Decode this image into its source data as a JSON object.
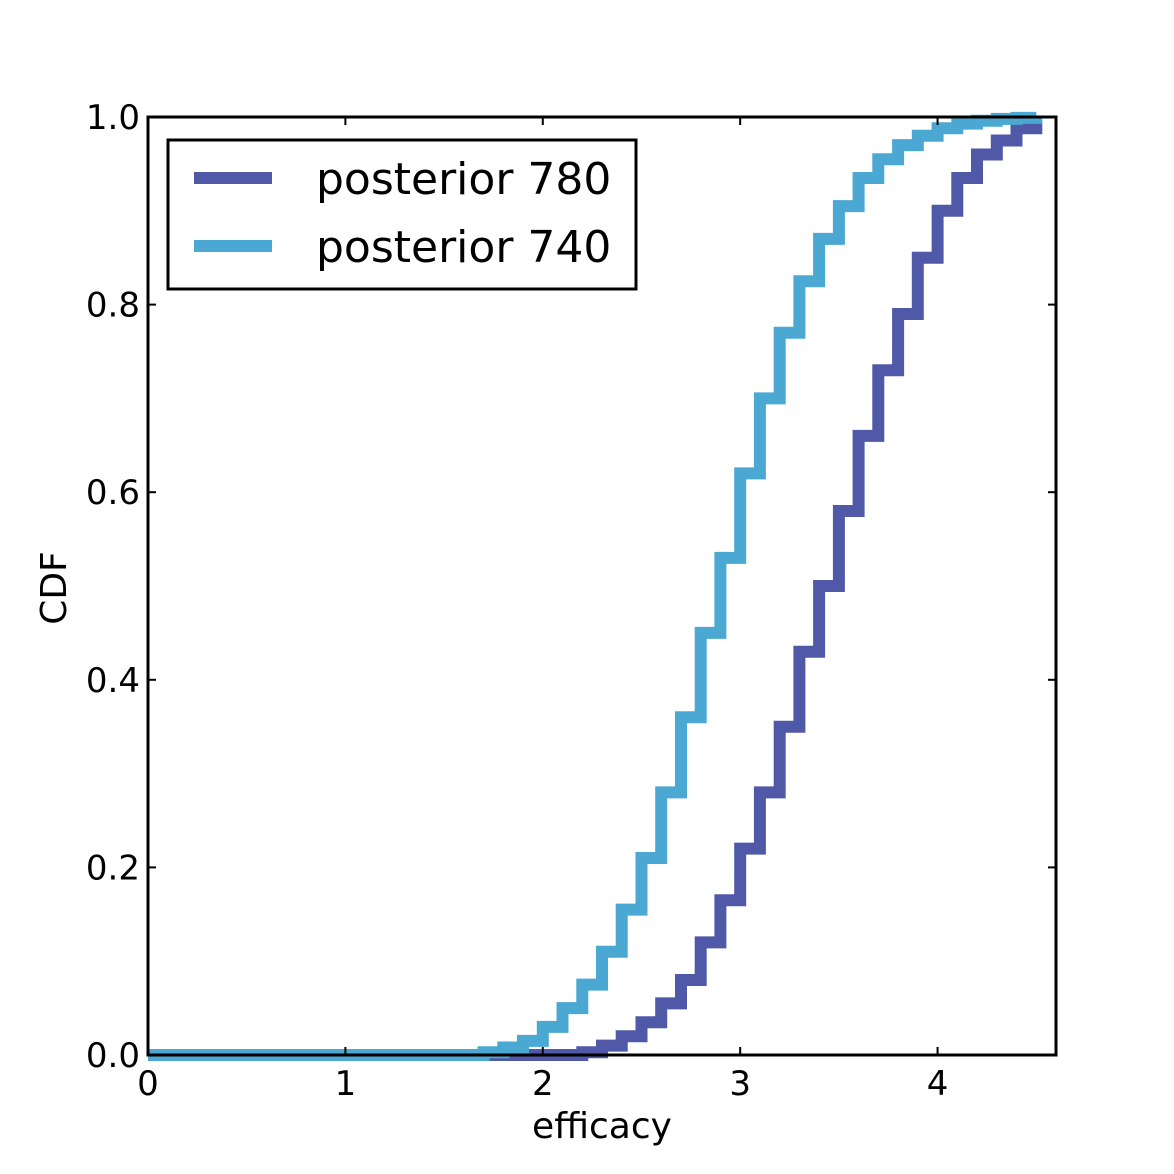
{
  "chart_data": {
    "type": "line",
    "step": true,
    "xlabel": "efficacy",
    "ylabel": "CDF",
    "xlim": [
      0,
      4.6
    ],
    "ylim": [
      0,
      1.0
    ],
    "x_ticks": [
      "0",
      "1",
      "2",
      "3",
      "4"
    ],
    "y_ticks": [
      "0.0",
      "0.2",
      "0.4",
      "0.6",
      "0.8",
      "1.0"
    ],
    "grid": false,
    "legend_position": "top-left",
    "series": [
      {
        "name": "posterior 780",
        "color": "#5059a8",
        "x": [
          0,
          1.5,
          2.0,
          2.2,
          2.3,
          2.4,
          2.5,
          2.6,
          2.7,
          2.8,
          2.9,
          3.0,
          3.1,
          3.2,
          3.3,
          3.4,
          3.5,
          3.6,
          3.7,
          3.8,
          3.9,
          4.0,
          4.1,
          4.2,
          4.3,
          4.4,
          4.5
        ],
        "y": [
          0.0,
          0.0,
          0.0,
          0.003,
          0.01,
          0.02,
          0.035,
          0.055,
          0.08,
          0.12,
          0.165,
          0.22,
          0.28,
          0.35,
          0.43,
          0.5,
          0.58,
          0.66,
          0.73,
          0.79,
          0.85,
          0.9,
          0.935,
          0.96,
          0.975,
          0.988,
          0.995
        ]
      },
      {
        "name": "posterior 740",
        "color": "#4ba8d2",
        "x": [
          0,
          1.5,
          1.7,
          1.8,
          1.9,
          2.0,
          2.1,
          2.2,
          2.3,
          2.4,
          2.5,
          2.6,
          2.7,
          2.8,
          2.9,
          3.0,
          3.1,
          3.2,
          3.3,
          3.4,
          3.5,
          3.6,
          3.7,
          3.8,
          3.9,
          4.0,
          4.1,
          4.2,
          4.3,
          4.4,
          4.5
        ],
        "y": [
          0.0,
          0.0,
          0.003,
          0.008,
          0.015,
          0.03,
          0.05,
          0.075,
          0.11,
          0.155,
          0.21,
          0.28,
          0.36,
          0.45,
          0.53,
          0.62,
          0.7,
          0.77,
          0.825,
          0.87,
          0.905,
          0.935,
          0.955,
          0.97,
          0.98,
          0.988,
          0.993,
          0.996,
          0.998,
          0.999,
          1.0
        ]
      }
    ]
  }
}
